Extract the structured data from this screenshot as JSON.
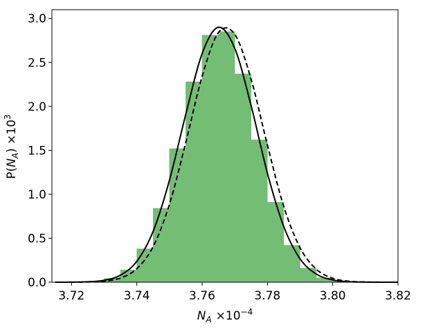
{
  "chart_data": {
    "type": "histogram",
    "x_label": [
      "N",
      "A",
      "×10",
      "−4"
    ],
    "y_label": [
      "P(",
      "N",
      "A",
      ") ×10",
      "3"
    ],
    "bins": [
      3.715,
      3.72,
      3.725,
      3.73,
      3.735,
      3.74,
      3.745,
      3.75,
      3.755,
      3.76,
      3.765,
      3.77,
      3.775,
      3.78,
      3.785,
      3.79,
      3.795,
      3.8,
      3.805,
      3.81,
      3.815,
      3.82
    ],
    "counts": [
      0.0004,
      0.0022,
      0.011,
      0.043,
      0.14,
      0.38,
      0.84,
      1.52,
      2.28,
      2.81,
      2.85,
      2.37,
      1.62,
      0.91,
      0.42,
      0.16,
      0.05,
      0.013,
      0.0027,
      0.0005,
      0.0001
    ],
    "color": "#74bd74",
    "x": [
      3.715,
      3.72,
      3.725,
      3.73,
      3.735,
      3.74,
      3.745,
      3.75,
      3.755,
      3.76,
      3.765,
      3.77,
      3.775,
      3.78,
      3.785,
      3.79,
      3.795,
      3.8,
      3.805,
      3.81,
      3.815,
      3.82
    ],
    "series": [
      {
        "color": "#000000",
        "dash": false,
        "values": [
          0.0001,
          0.0009,
          0.005,
          0.022,
          0.08,
          0.237,
          0.578,
          1.16,
          1.91,
          2.6,
          2.9,
          2.66,
          2.01,
          1.24,
          0.634,
          0.266,
          0.092,
          0.026,
          0.006,
          0.0012,
          0.0002,
          0
        ]
      },
      {
        "color": "#000000",
        "dash": true,
        "values": [
          0,
          0.0004,
          0.0025,
          0.012,
          0.048,
          0.153,
          0.405,
          0.886,
          1.59,
          2.34,
          2.84,
          2.82,
          2.31,
          1.56,
          0.862,
          0.392,
          0.147,
          0.045,
          0.011,
          0.0024,
          0.0004,
          0
        ]
      }
    ],
    "xlim": [
      3.714,
      3.82
    ],
    "ylim": [
      0,
      3.1
    ],
    "xticks": [
      {
        "value": 3.72,
        "label": "3.72"
      },
      {
        "value": 3.74,
        "label": "3.74"
      },
      {
        "value": 3.76,
        "label": "3.76"
      },
      {
        "value": 3.78,
        "label": "3.78"
      },
      {
        "value": 3.8,
        "label": "3.80"
      },
      {
        "value": 3.82,
        "label": "3.82"
      }
    ],
    "yticks": [
      {
        "value": 0,
        "label": "0.0"
      },
      {
        "value": 0.5,
        "label": "0.5"
      },
      {
        "value": 1,
        "label": "1.0"
      },
      {
        "value": 1.5,
        "label": "1.5"
      },
      {
        "value": 2,
        "label": "2.0"
      },
      {
        "value": 2.5,
        "label": "2.5"
      },
      {
        "value": 3,
        "label": "3.0"
      }
    ]
  }
}
